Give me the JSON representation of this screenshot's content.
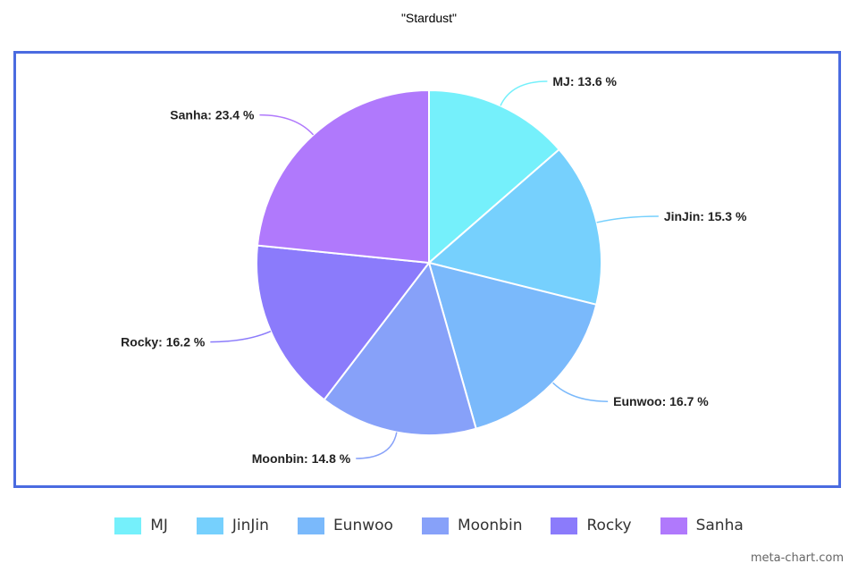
{
  "chart_data": {
    "type": "pie",
    "title": "\"Stardust\"",
    "categories": [
      "MJ",
      "JinJin",
      "Eunwoo",
      "Moonbin",
      "Rocky",
      "Sanha"
    ],
    "values": [
      13.6,
      15.3,
      16.7,
      14.8,
      16.2,
      23.4
    ],
    "unit": "%",
    "labels": [
      "MJ: 13.6 %",
      "JinJin: 15.3 %",
      "Eunwoo: 16.7 %",
      "Moonbin: 14.8 %",
      "Rocky: 16.2 %",
      "Sanha: 23.4 %"
    ],
    "colors": [
      "#75f0fb",
      "#76d0fd",
      "#7ab9fb",
      "#87a1f9",
      "#8b7bfb",
      "#b079fc"
    ],
    "legend": "bottom-center"
  },
  "watermark": "meta-chart.com"
}
